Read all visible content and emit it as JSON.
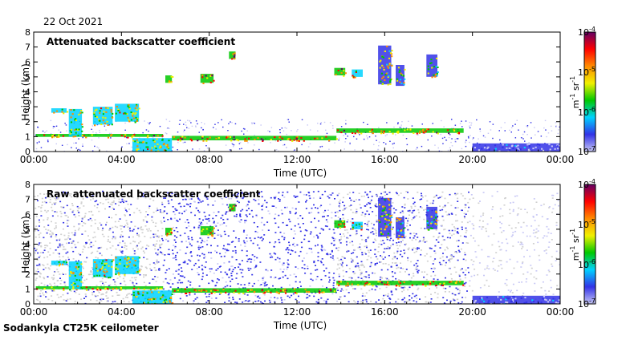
{
  "header": {
    "date": "22 Oct 2021"
  },
  "footer": {
    "instrument": "Sodankyla CT25K ceilometer"
  },
  "colors": {
    "colormap": [
      "#c8c8f5",
      "#3232e6",
      "#00d2ff",
      "#00c800",
      "#f0f000",
      "#ff8c00",
      "#ff0000",
      "#640064"
    ],
    "noise_gray": "#cfcfcf"
  },
  "chart_data": [
    {
      "type": "heatmap",
      "title": "Attenuated backscatter coefficient",
      "xlabel": "Time (UTC)",
      "ylabel": "Height (km)",
      "xlim": [
        0,
        24
      ],
      "ylim": [
        0,
        8
      ],
      "x_ticks": [
        0,
        4,
        8,
        12,
        16,
        20,
        24
      ],
      "x_tick_labels": [
        "00:00",
        "04:00",
        "08:00",
        "12:00",
        "16:00",
        "20:00",
        "00:00"
      ],
      "y_ticks": [
        0,
        1,
        2,
        3,
        4,
        5,
        6,
        7,
        8
      ],
      "y_tick_labels": [
        "0",
        "1",
        "2",
        "3",
        "4",
        "5",
        "6",
        "7",
        "8"
      ],
      "colorbar": {
        "label": "m-1 sr-1",
        "range": [
          1e-07,
          0.0001
        ],
        "tick_labels": [
          "10^-4",
          "10^-5",
          "10^-6",
          "10^-7"
        ]
      },
      "features": [
        {
          "t0": 0.1,
          "t1": 5.9,
          "h0": 0.98,
          "h1": 1.18,
          "level": 0.85
        },
        {
          "t0": 0.8,
          "t1": 1.5,
          "h0": 2.6,
          "h1": 2.9,
          "level": 0.7
        },
        {
          "t0": 1.6,
          "t1": 2.2,
          "h0": 1.0,
          "h1": 2.85,
          "level": 0.7
        },
        {
          "t0": 2.7,
          "t1": 3.6,
          "h0": 1.8,
          "h1": 3.0,
          "level": 0.72
        },
        {
          "t0": 3.7,
          "t1": 4.8,
          "h0": 2.0,
          "h1": 3.2,
          "level": 0.7
        },
        {
          "t0": 4.5,
          "t1": 6.3,
          "h0": 0.0,
          "h1": 0.9,
          "level": 0.7
        },
        {
          "t0": 6.3,
          "t1": 13.8,
          "h0": 0.75,
          "h1": 1.05,
          "level": 0.88
        },
        {
          "t0": 6.0,
          "t1": 6.3,
          "h0": 4.6,
          "h1": 5.1,
          "level": 0.85
        },
        {
          "t0": 7.6,
          "t1": 8.2,
          "h0": 4.6,
          "h1": 5.2,
          "level": 0.85
        },
        {
          "t0": 8.9,
          "t1": 9.2,
          "h0": 6.2,
          "h1": 6.7,
          "level": 0.9
        },
        {
          "t0": 13.7,
          "t1": 14.2,
          "h0": 5.1,
          "h1": 5.6,
          "level": 0.88
        },
        {
          "t0": 14.5,
          "t1": 15.0,
          "h0": 5.0,
          "h1": 5.5,
          "level": 0.8
        },
        {
          "t0": 15.7,
          "t1": 16.3,
          "h0": 4.5,
          "h1": 7.1,
          "level": 0.65
        },
        {
          "t0": 16.5,
          "t1": 16.9,
          "h0": 4.4,
          "h1": 5.8,
          "level": 0.65
        },
        {
          "t0": 17.9,
          "t1": 18.4,
          "h0": 5.0,
          "h1": 6.5,
          "level": 0.62
        },
        {
          "t0": 13.8,
          "t1": 19.6,
          "h0": 1.25,
          "h1": 1.55,
          "level": 0.85
        },
        {
          "t0": 20.0,
          "t1": 24.0,
          "h0": 0.0,
          "h1": 0.55,
          "level": 0.15
        }
      ]
    },
    {
      "type": "heatmap",
      "title": "Raw attenuated backscatter coefficient",
      "xlabel": "Time (UTC)",
      "ylabel": "Height (km)",
      "xlim": [
        0,
        24
      ],
      "ylim": [
        0,
        8
      ],
      "x_ticks": [
        0,
        4,
        8,
        12,
        16,
        20,
        24
      ],
      "x_tick_labels": [
        "00:00",
        "04:00",
        "08:00",
        "12:00",
        "16:00",
        "20:00",
        "00:00"
      ],
      "y_ticks": [
        0,
        1,
        2,
        3,
        4,
        5,
        6,
        7,
        8
      ],
      "y_tick_labels": [
        "0",
        "1",
        "2",
        "3",
        "4",
        "5",
        "6",
        "7",
        "8"
      ],
      "colorbar": {
        "label": "m-1 sr-1",
        "range": [
          1e-07,
          0.0001
        ],
        "tick_labels": [
          "10^-4",
          "10^-5",
          "10^-6",
          "10^-7"
        ]
      },
      "noise_background": [
        {
          "t0": 0.0,
          "t1": 5.9,
          "h0": 0.0,
          "h1": 7.6,
          "kind": "gray"
        },
        {
          "t0": 5.9,
          "t1": 13.8,
          "h0": 0.0,
          "h1": 7.6,
          "kind": "blue"
        },
        {
          "t0": 13.8,
          "t1": 19.8,
          "h0": 0.0,
          "h1": 7.6,
          "kind": "mixed"
        },
        {
          "t0": 19.8,
          "t1": 24.0,
          "h0": 0.0,
          "h1": 7.6,
          "kind": "sparse"
        }
      ],
      "features": [
        {
          "t0": 0.1,
          "t1": 5.9,
          "h0": 0.98,
          "h1": 1.18,
          "level": 0.85
        },
        {
          "t0": 0.8,
          "t1": 1.5,
          "h0": 2.6,
          "h1": 2.9,
          "level": 0.7
        },
        {
          "t0": 1.6,
          "t1": 2.2,
          "h0": 1.0,
          "h1": 2.85,
          "level": 0.7
        },
        {
          "t0": 2.7,
          "t1": 3.6,
          "h0": 1.8,
          "h1": 3.0,
          "level": 0.72
        },
        {
          "t0": 3.7,
          "t1": 4.8,
          "h0": 2.0,
          "h1": 3.2,
          "level": 0.7
        },
        {
          "t0": 4.5,
          "t1": 6.3,
          "h0": 0.0,
          "h1": 0.9,
          "level": 0.7
        },
        {
          "t0": 6.3,
          "t1": 13.8,
          "h0": 0.75,
          "h1": 1.05,
          "level": 0.88
        },
        {
          "t0": 6.0,
          "t1": 6.3,
          "h0": 4.6,
          "h1": 5.1,
          "level": 0.85
        },
        {
          "t0": 7.6,
          "t1": 8.2,
          "h0": 4.6,
          "h1": 5.2,
          "level": 0.85
        },
        {
          "t0": 8.9,
          "t1": 9.2,
          "h0": 6.2,
          "h1": 6.7,
          "level": 0.9
        },
        {
          "t0": 13.7,
          "t1": 14.2,
          "h0": 5.1,
          "h1": 5.6,
          "level": 0.88
        },
        {
          "t0": 14.5,
          "t1": 15.0,
          "h0": 5.0,
          "h1": 5.5,
          "level": 0.8
        },
        {
          "t0": 15.7,
          "t1": 16.3,
          "h0": 4.5,
          "h1": 7.1,
          "level": 0.65
        },
        {
          "t0": 16.5,
          "t1": 16.9,
          "h0": 4.4,
          "h1": 5.8,
          "level": 0.65
        },
        {
          "t0": 17.9,
          "t1": 18.4,
          "h0": 5.0,
          "h1": 6.5,
          "level": 0.62
        },
        {
          "t0": 13.8,
          "t1": 19.6,
          "h0": 1.25,
          "h1": 1.55,
          "level": 0.85
        },
        {
          "t0": 20.0,
          "t1": 24.0,
          "h0": 0.0,
          "h1": 0.55,
          "level": 0.15
        }
      ]
    }
  ]
}
